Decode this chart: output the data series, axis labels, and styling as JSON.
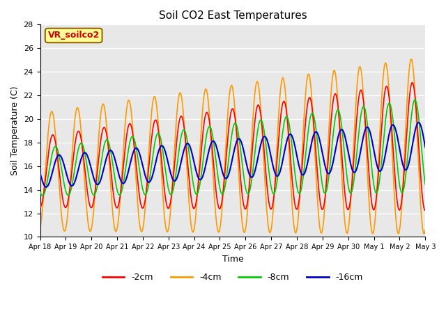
{
  "title": "Soil CO2 East Temperatures",
  "xlabel": "Time",
  "ylabel": "Soil Temperature (C)",
  "ylim": [
    10,
    28
  ],
  "annotation_text": "VR_soilco2",
  "annotation_color": "#cc0000",
  "annotation_bg": "#ffff99",
  "annotation_border": "#996600",
  "legend_labels": [
    "-2cm",
    "-4cm",
    "-8cm",
    "-16cm"
  ],
  "legend_colors": [
    "#ff0000",
    "#ff9900",
    "#00cc00",
    "#0000cc"
  ],
  "background_color": "#ffffff",
  "plot_bg_color": "#e8e8e8",
  "grid_color": "#ffffff",
  "tick_labels": [
    "Apr 18",
    "Apr 19",
    "Apr 20",
    "Apr 21",
    "Apr 22",
    "Apr 23",
    "Apr 24",
    "Apr 25",
    "Apr 26",
    "Apr 27",
    "Apr 28",
    "Apr 29",
    "Apr 30",
    "May 1",
    "May 2",
    "May 3"
  ],
  "n_days": 15,
  "ppd": 48
}
